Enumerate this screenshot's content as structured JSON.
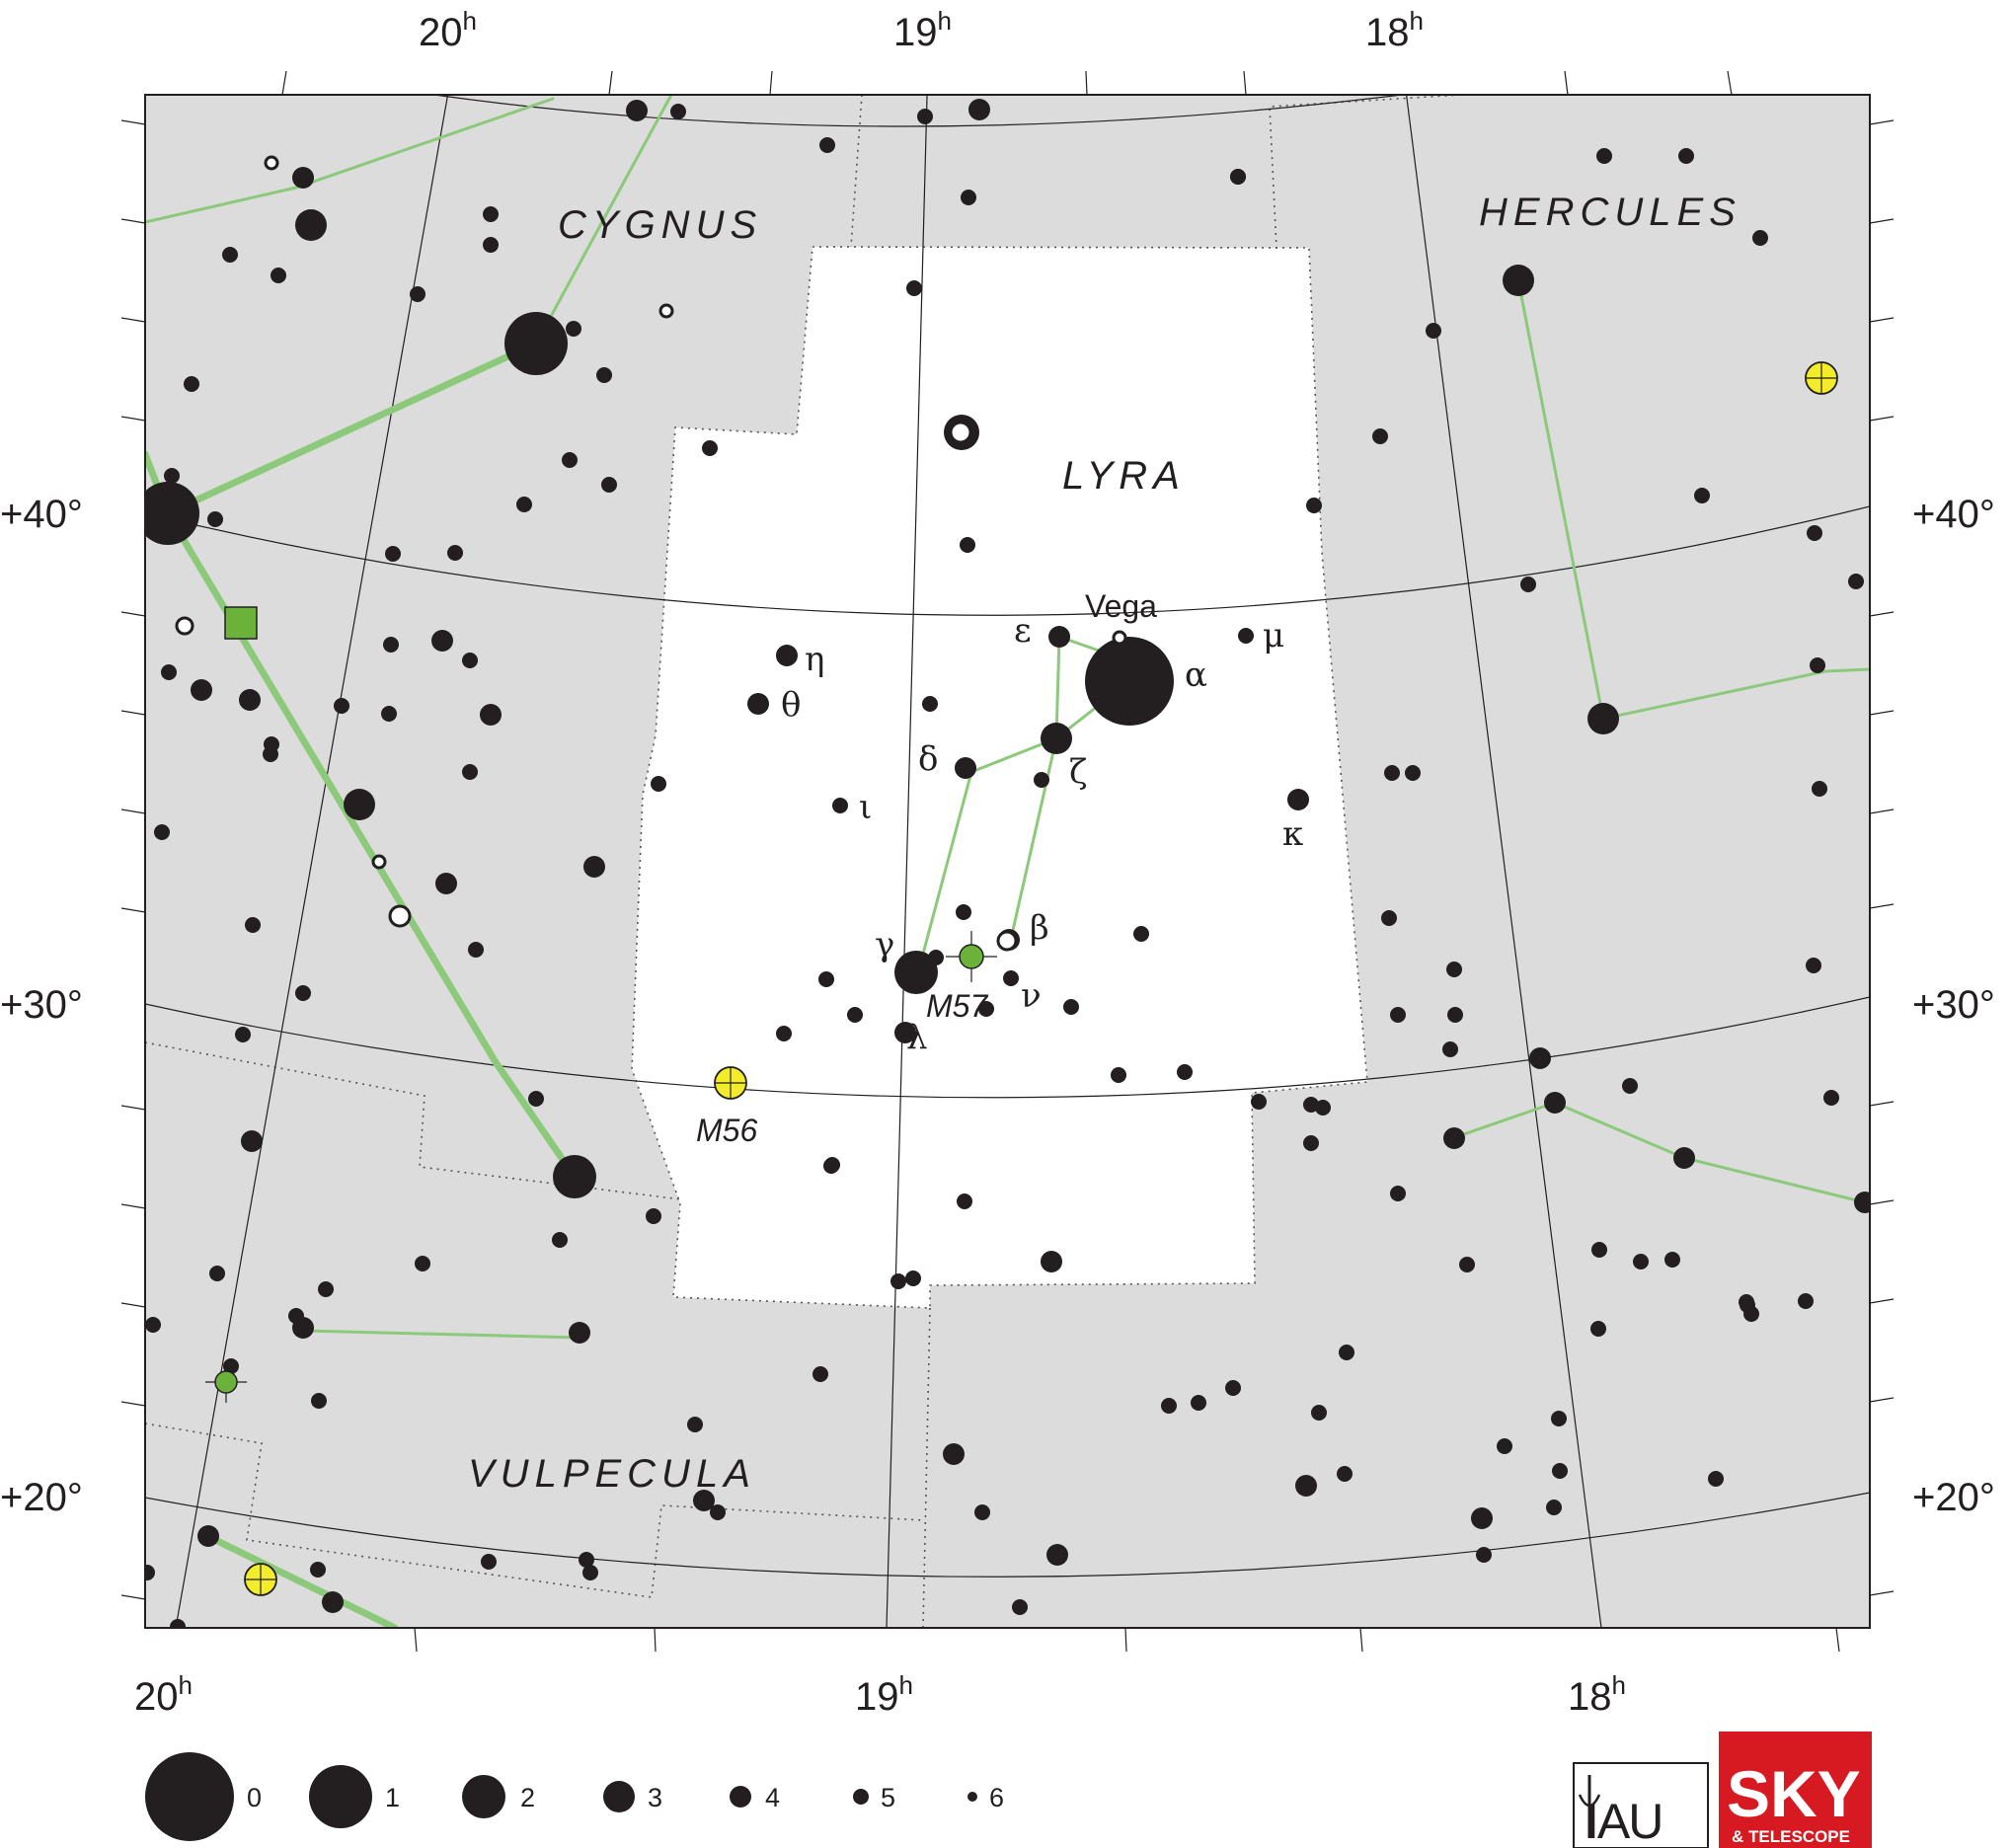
{
  "title": "",
  "colors": {
    "sky_outside": "#dcdcdc",
    "sky_inside": "#ffffff",
    "figure_line": "#8cc97a",
    "star": "#231f20",
    "cluster": "#f2ec2b",
    "nebula": "#6ab23a",
    "logo_red": "#d71921"
  },
  "ra_labels": {
    "top": [
      {
        "h": "20",
        "sup": "h"
      },
      {
        "h": "19",
        "sup": "h"
      },
      {
        "h": "18",
        "sup": "h"
      }
    ],
    "bottom": [
      {
        "h": "20",
        "sup": "h"
      },
      {
        "h": "19",
        "sup": "h"
      },
      {
        "h": "18",
        "sup": "h"
      }
    ]
  },
  "dec_labels": {
    "left": [
      "+40°",
      "+30°",
      "+20°"
    ],
    "right": [
      "+40°",
      "+30°",
      "+20°"
    ]
  },
  "constellations": [
    "CYGNUS",
    "HERCULES",
    "LYRA",
    "VULPECULA"
  ],
  "star_labels": {
    "eta": "η",
    "theta": "θ",
    "iota": "ι",
    "epsilon": "ε",
    "alpha": "α",
    "mu": "μ",
    "delta": "δ",
    "zeta": "ζ",
    "kappa": "κ",
    "gamma": "γ",
    "beta": "β",
    "nu": "ν",
    "lambda": "λ"
  },
  "proper_names": {
    "vega": "Vega"
  },
  "deep_sky": {
    "m57": "M57",
    "m56": "M56"
  },
  "legend": {
    "magnitudes": [
      "0",
      "1",
      "2",
      "3",
      "4",
      "5",
      "6"
    ]
  },
  "logos": {
    "iau": "IAU",
    "sky": "SKY",
    "sky_sub": "& TELESCOPE"
  }
}
